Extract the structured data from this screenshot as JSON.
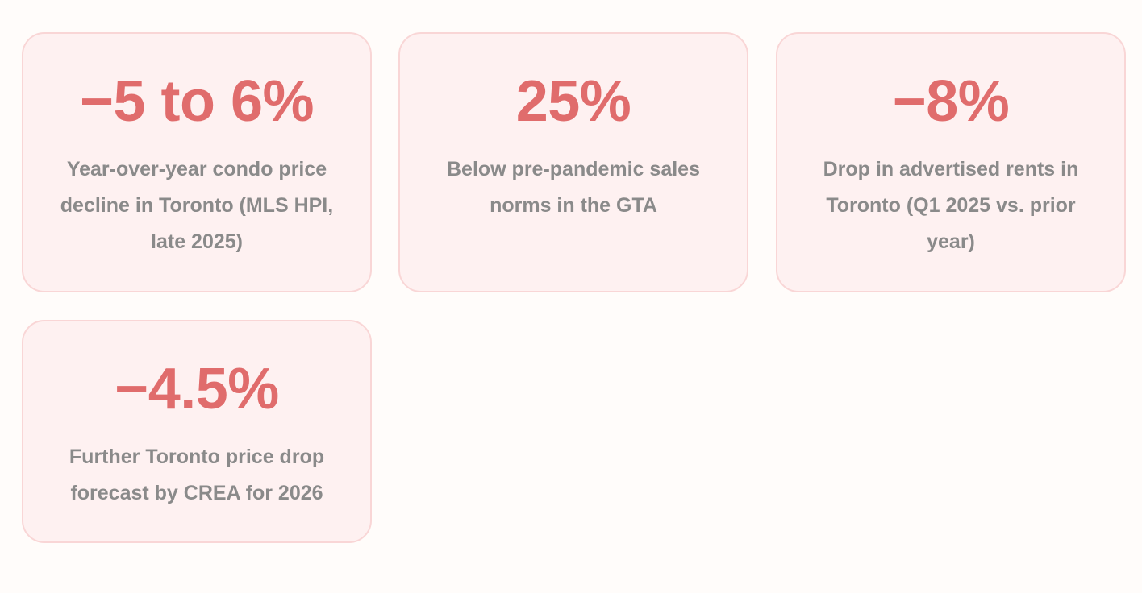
{
  "colors": {
    "background": "#fffcfa",
    "card_background": "#fef1f1",
    "card_border": "#f9d6d6",
    "value_color": "#e06c6c",
    "description_color": "#8a8a8a"
  },
  "stats": [
    {
      "value": "−5 to 6%",
      "description": "Year-over-year condo price decline in Toronto (MLS HPI, late 2025)"
    },
    {
      "value": "25%",
      "description": "Below pre-pandemic sales norms in the GTA"
    },
    {
      "value": "−8%",
      "description": "Drop in advertised rents in Toronto (Q1 2025 vs. prior year)"
    },
    {
      "value": "−4.5%",
      "description": "Further Toronto price drop forecast by CREA for 2026"
    }
  ]
}
